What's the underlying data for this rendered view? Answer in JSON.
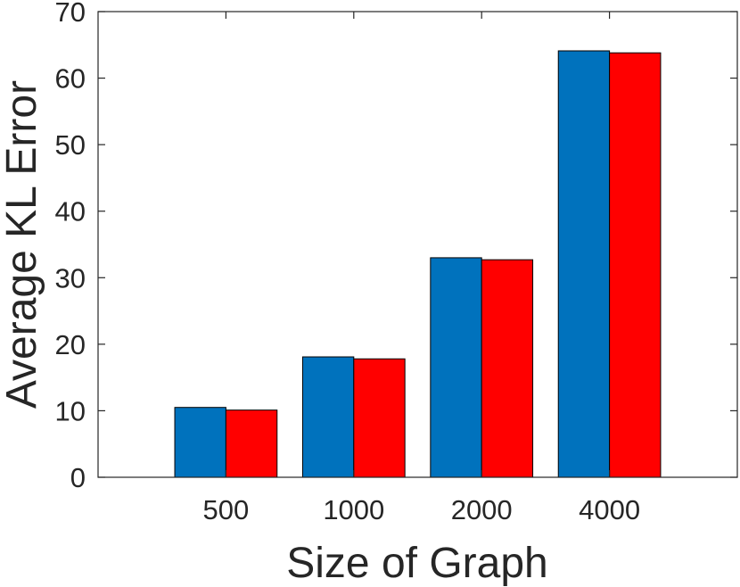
{
  "chart_data": {
    "type": "bar",
    "categories": [
      "500",
      "1000",
      "2000",
      "4000"
    ],
    "series": [
      {
        "values": [
          10.5,
          18.1,
          33.0,
          64.1
        ],
        "color": "#0072BD"
      },
      {
        "values": [
          10.1,
          17.8,
          32.7,
          63.8
        ],
        "color": "#FF0000"
      }
    ],
    "xlabel": "Size of Graph",
    "ylabel": "Average KL Error",
    "ylim": [
      0,
      70
    ],
    "yticks": [
      0,
      10,
      20,
      30,
      40,
      50,
      60,
      70
    ],
    "xlim": [
      0,
      5
    ],
    "grid": false,
    "legend": "none"
  }
}
